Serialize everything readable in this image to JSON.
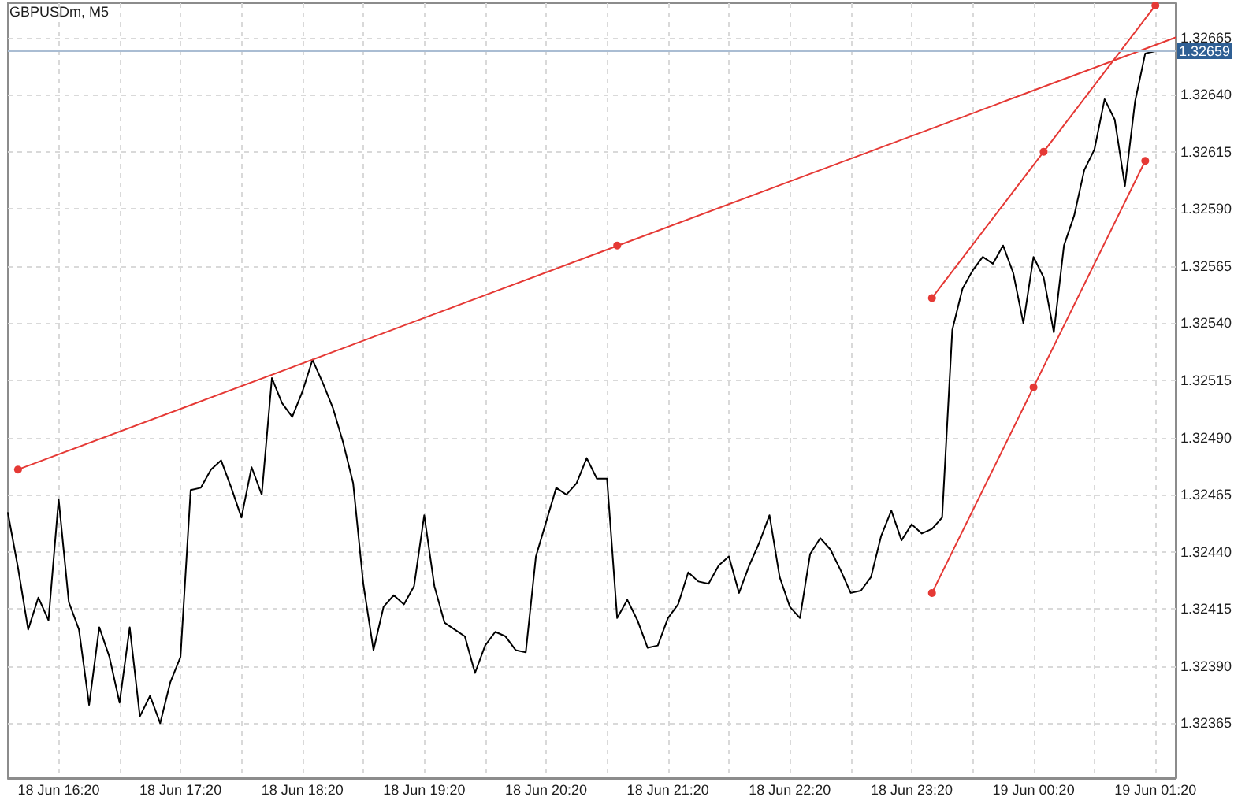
{
  "chart_data": {
    "type": "line",
    "title": "GBPUSDm, M5",
    "categories": [
      null,
      null,
      null,
      null,
      null,
      "18 Jun 16:20",
      null,
      null,
      null,
      null,
      null,
      null,
      null,
      null,
      null,
      null,
      null,
      "18 Jun 17:20",
      null,
      null,
      null,
      null,
      null,
      null,
      null,
      null,
      null,
      null,
      null,
      "18 Jun 18:20",
      null,
      null,
      null,
      null,
      null,
      null,
      null,
      null,
      null,
      null,
      null,
      "18 Jun 19:20",
      null,
      null,
      null,
      null,
      null,
      null,
      null,
      null,
      null,
      null,
      null,
      "18 Jun 20:20",
      null,
      null,
      null,
      null,
      null,
      null,
      null,
      null,
      null,
      null,
      null,
      "18 Jun 21:20",
      null,
      null,
      null,
      null,
      null,
      null,
      null,
      null,
      null,
      null,
      null,
      "18 Jun 22:20",
      null,
      null,
      null,
      null,
      null,
      null,
      null,
      null,
      null,
      null,
      null,
      "18 Jun 23:20",
      null,
      null,
      null,
      null,
      null,
      null,
      null,
      null,
      null,
      null,
      null,
      "19 Jun 00:20",
      null,
      null,
      null,
      null,
      null,
      null,
      null,
      null,
      null,
      null,
      null,
      "19 Jun 01:20",
      null,
      null
    ],
    "series": [
      {
        "color": "#000000",
        "values": [
          1.32457,
          1.32433,
          1.32406,
          1.3242,
          1.3241,
          1.32463,
          1.32418,
          1.32406,
          1.32373,
          1.32407,
          1.32394,
          1.32374,
          1.32407,
          1.32368,
          1.32377,
          1.32365,
          1.32383,
          1.32394,
          1.32467,
          1.32468,
          1.32476,
          1.3248,
          1.32468,
          1.32455,
          1.32477,
          1.32465,
          1.32516,
          1.32505,
          1.32499,
          1.3251,
          1.32524,
          1.32514,
          1.32503,
          1.32488,
          1.3247,
          1.32426,
          1.32397,
          1.32416,
          1.32421,
          1.32417,
          1.32425,
          1.32456,
          1.32425,
          1.32409,
          1.32406,
          1.32403,
          1.32387,
          1.32399,
          1.32405,
          1.32403,
          1.32397,
          1.32396,
          1.32438,
          1.32453,
          1.32468,
          1.32465,
          1.3247,
          1.32481,
          1.32472,
          1.32472,
          1.32411,
          1.32419,
          1.3241,
          1.32398,
          1.32399,
          1.32411,
          1.32417,
          1.32431,
          1.32427,
          1.32426,
          1.32434,
          1.32438,
          1.32422,
          1.32434,
          1.32444,
          1.32456,
          1.32429,
          1.32416,
          1.32411,
          1.32439,
          1.32446,
          1.32441,
          1.32432,
          1.32422,
          1.32423,
          1.32429,
          1.32447,
          1.32458,
          1.32445,
          1.32452,
          1.32448,
          1.3245,
          1.32455,
          1.32537,
          1.32555,
          1.32563,
          1.32569,
          1.32566,
          1.32574,
          1.32562,
          1.3254,
          1.32569,
          1.3256,
          1.32536,
          1.32574,
          1.32587,
          1.32607,
          1.32616,
          1.32638,
          1.32629,
          1.326,
          1.32637,
          1.32658,
          1.32659,
          null,
          null
        ]
      },
      {
        "type": "line",
        "color": "#e53935",
        "values": [
          null,
          1.32476,
          null,
          null,
          null,
          null,
          null,
          null,
          null,
          null,
          null,
          null,
          null,
          null,
          null,
          null,
          null,
          null,
          null,
          null,
          null,
          null,
          null,
          null,
          null,
          null,
          null,
          null,
          null,
          null,
          null,
          null,
          null,
          null,
          null,
          null,
          null,
          null,
          null,
          null,
          null,
          null,
          null,
          null,
          null,
          null,
          null,
          null,
          null,
          null,
          null,
          null,
          null,
          null,
          null,
          null,
          null,
          null,
          null,
          null,
          null,
          null,
          null,
          null,
          null,
          null,
          null,
          null,
          null,
          null,
          null,
          null,
          null,
          null,
          null,
          null,
          null,
          null,
          null,
          null,
          null,
          null,
          null,
          null,
          null,
          null,
          null,
          null,
          null,
          null,
          null,
          null,
          null,
          null,
          null,
          null,
          null,
          null,
          null,
          null,
          null,
          null,
          null,
          null,
          null,
          null,
          null,
          null,
          null,
          null,
          null,
          null,
          null,
          null,
          null,
          1.32665
        ]
      },
      {
        "type": "scatter",
        "color": "#e53935",
        "marker": "circle",
        "values": [
          null,
          1.32476,
          null,
          null,
          null,
          null,
          null,
          null,
          null,
          null,
          null,
          null,
          null,
          null,
          null,
          null,
          null,
          null,
          null,
          null,
          null,
          null,
          null,
          null,
          null,
          null,
          null,
          null,
          null,
          null,
          null,
          null,
          null,
          null,
          null,
          null,
          null,
          null,
          null,
          null,
          null,
          null,
          null,
          null,
          null,
          null,
          null,
          null,
          null,
          null,
          null,
          null,
          null,
          null,
          null,
          null,
          null,
          null,
          null,
          null,
          1.32574,
          null,
          null,
          null,
          null,
          null,
          null,
          null,
          null,
          null,
          null,
          null,
          null,
          null,
          null,
          null,
          null,
          null,
          null,
          null,
          null,
          null,
          null,
          null,
          null,
          null,
          null,
          null,
          null,
          null,
          null,
          null,
          null,
          null,
          null,
          null,
          null,
          null,
          null,
          null,
          null,
          null,
          null,
          null,
          null,
          null,
          null,
          null,
          null,
          null,
          null,
          null,
          null,
          null,
          null,
          null
        ]
      },
      {
        "type": "line",
        "color": "#e53935",
        "marker": "circle",
        "values": [
          null,
          null,
          null,
          null,
          null,
          null,
          null,
          null,
          null,
          null,
          null,
          null,
          null,
          null,
          null,
          null,
          null,
          null,
          null,
          null,
          null,
          null,
          null,
          null,
          null,
          null,
          null,
          null,
          null,
          null,
          null,
          null,
          null,
          null,
          null,
          null,
          null,
          null,
          null,
          null,
          null,
          null,
          null,
          null,
          null,
          null,
          null,
          null,
          null,
          null,
          null,
          null,
          null,
          null,
          null,
          null,
          null,
          null,
          null,
          null,
          null,
          null,
          null,
          null,
          null,
          null,
          null,
          null,
          null,
          null,
          null,
          null,
          null,
          null,
          null,
          null,
          null,
          null,
          null,
          null,
          null,
          null,
          null,
          null,
          null,
          null,
          null,
          null,
          null,
          null,
          null,
          1.32551,
          null,
          null,
          null,
          null,
          null,
          null,
          null,
          null,
          null,
          null,
          1.32615,
          null,
          null,
          null,
          null,
          null,
          null,
          null,
          null,
          null,
          null,
          1.32679,
          null,
          null
        ]
      },
      {
        "type": "line",
        "color": "#e53935",
        "marker": "circle",
        "values": [
          null,
          null,
          null,
          null,
          null,
          null,
          null,
          null,
          null,
          null,
          null,
          null,
          null,
          null,
          null,
          null,
          null,
          null,
          null,
          null,
          null,
          null,
          null,
          null,
          null,
          null,
          null,
          null,
          null,
          null,
          null,
          null,
          null,
          null,
          null,
          null,
          null,
          null,
          null,
          null,
          null,
          null,
          null,
          null,
          null,
          null,
          null,
          null,
          null,
          null,
          null,
          null,
          null,
          null,
          null,
          null,
          null,
          null,
          null,
          null,
          null,
          null,
          null,
          null,
          null,
          null,
          null,
          null,
          null,
          null,
          null,
          null,
          null,
          null,
          null,
          null,
          null,
          null,
          null,
          null,
          null,
          null,
          null,
          null,
          null,
          null,
          null,
          null,
          null,
          null,
          null,
          1.32422,
          null,
          null,
          null,
          null,
          null,
          null,
          null,
          null,
          null,
          1.32512,
          null,
          null,
          null,
          null,
          null,
          null,
          null,
          null,
          null,
          null,
          1.32611,
          null,
          null,
          null
        ]
      }
    ],
    "ylim": [
      1.32341,
      1.3268
    ],
    "yticks": [
      1.32365,
      {
        "value": 1.3239,
        "label": "1.32390"
      },
      1.32415,
      {
        "value": 1.3244,
        "label": "1.32440"
      },
      1.32465,
      {
        "value": 1.3249,
        "label": "1.32490"
      },
      1.32515,
      {
        "value": 1.3254,
        "label": "1.32540"
      },
      1.32565,
      {
        "value": 1.3259,
        "label": "1.32590"
      },
      1.32615,
      {
        "value": 1.3264,
        "label": "1.32640"
      },
      1.32665
    ],
    "ref_lines": [
      {
        "axis": "y",
        "value": 1.32659,
        "label": "1.32659",
        "color": "#aabdd3"
      }
    ],
    "grid": true
  }
}
